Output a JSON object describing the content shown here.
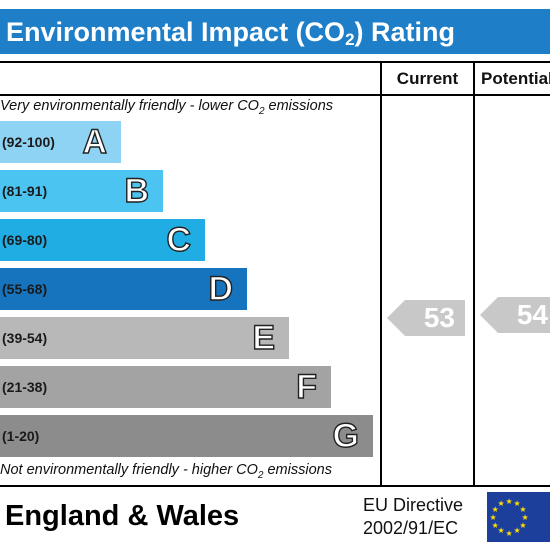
{
  "title": {
    "prefix": "Environmental Impact (CO",
    "sub": "2",
    "suffix": ") Rating"
  },
  "columns": {
    "current": "Current",
    "potential": "Potential"
  },
  "notes": {
    "top": {
      "prefix": "Very environmentally friendly - lower CO",
      "sub": "2",
      "suffix": " emissions"
    },
    "bottom": {
      "prefix": "Not environmentally friendly - higher CO",
      "sub": "2",
      "suffix": " emissions"
    }
  },
  "footer": {
    "region": "England & Wales",
    "directive_line1": "EU Directive",
    "directive_line2": "2002/91/EC"
  },
  "colors": {
    "header": "#1e7fc8",
    "flag": "#1b3f9b",
    "flag_stars": "#ffde00",
    "arrow": "#c8c8c8"
  },
  "chart_data": {
    "type": "bar",
    "title": "Environmental Impact (CO2) Rating",
    "bands": [
      {
        "letter": "A",
        "range": "(92-100)",
        "color": "#8fd3f4"
      },
      {
        "letter": "B",
        "range": "(81-91)",
        "color": "#4cc4f2"
      },
      {
        "letter": "C",
        "range": "(69-80)",
        "color": "#20ade3"
      },
      {
        "letter": "D",
        "range": "(55-68)",
        "color": "#1673bd"
      },
      {
        "letter": "E",
        "range": "(39-54)",
        "color": "#b8b8b8"
      },
      {
        "letter": "F",
        "range": "(21-38)",
        "color": "#a3a3a3"
      },
      {
        "letter": "G",
        "range": "(1-20)",
        "color": "#8c8c8c"
      }
    ],
    "current": {
      "value": 53,
      "band": "E"
    },
    "potential": {
      "value": 54,
      "band": "E"
    }
  }
}
